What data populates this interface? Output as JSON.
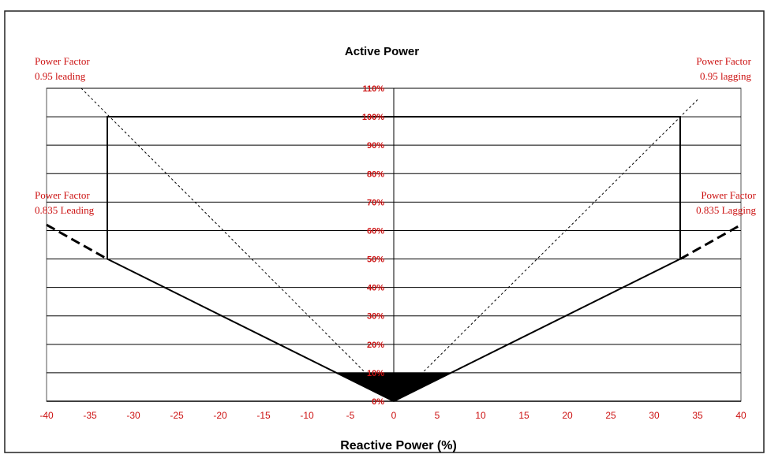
{
  "chart_data": {
    "type": "line",
    "title": "Active Power",
    "xlabel": "Reactive Power (%)",
    "ylabel": "",
    "xlim": [
      -40,
      40
    ],
    "ylim": [
      0,
      110
    ],
    "x_ticks": [
      -40,
      -35,
      -30,
      -25,
      -20,
      -15,
      -10,
      -5,
      0,
      5,
      10,
      15,
      20,
      25,
      30,
      35,
      40
    ],
    "y_ticks": [
      0,
      10,
      20,
      30,
      40,
      50,
      60,
      70,
      80,
      90,
      100,
      110
    ],
    "y_tick_labels": [
      "0%",
      "10%",
      "20%",
      "30%",
      "40%",
      "50%",
      "60%",
      "70%",
      "80%",
      "90%",
      "100%",
      "110%"
    ],
    "grid": "horizontal",
    "series": [
      {
        "name": "",
        "style": "solid-boundary",
        "points": [
          [
            0,
            0
          ],
          [
            -33,
            50
          ],
          [
            -33,
            100
          ],
          [
            33,
            100
          ],
          [
            33,
            50
          ],
          [
            0,
            0
          ]
        ]
      },
      {
        "name": "",
        "style": "dashed-thick",
        "points": [
          [
            -40,
            62
          ],
          [
            -33,
            50
          ]
        ]
      },
      {
        "name": "",
        "style": "dashed-thick",
        "points": [
          [
            33,
            50
          ],
          [
            40,
            62
          ]
        ]
      },
      {
        "name": "",
        "style": "dotted",
        "points": [
          [
            0,
            0
          ],
          [
            -36,
            110
          ]
        ]
      },
      {
        "name": "",
        "style": "dotted",
        "points": [
          [
            0,
            0
          ],
          [
            35,
            106
          ]
        ]
      },
      {
        "name": "",
        "style": "filled-region",
        "points": [
          [
            -6.5,
            10
          ],
          [
            6.5,
            10
          ],
          [
            0,
            0
          ]
        ]
      }
    ],
    "annotations": [
      {
        "line1": "Power Factor",
        "line2": "0.95 leading",
        "position": "top-left"
      },
      {
        "line1": "Power Factor",
        "line2": "0.95 lagging",
        "position": "top-right"
      },
      {
        "line1": "Power Factor",
        "line2": "0.835 Leading",
        "position": "middle-left"
      },
      {
        "line1": "Power Factor",
        "line2": "0.835 Lagging",
        "position": "middle-right"
      }
    ],
    "colors": {
      "annotation": "#cc1111",
      "tick": "#cc1111",
      "line": "#000000",
      "grid": "#000000"
    }
  }
}
